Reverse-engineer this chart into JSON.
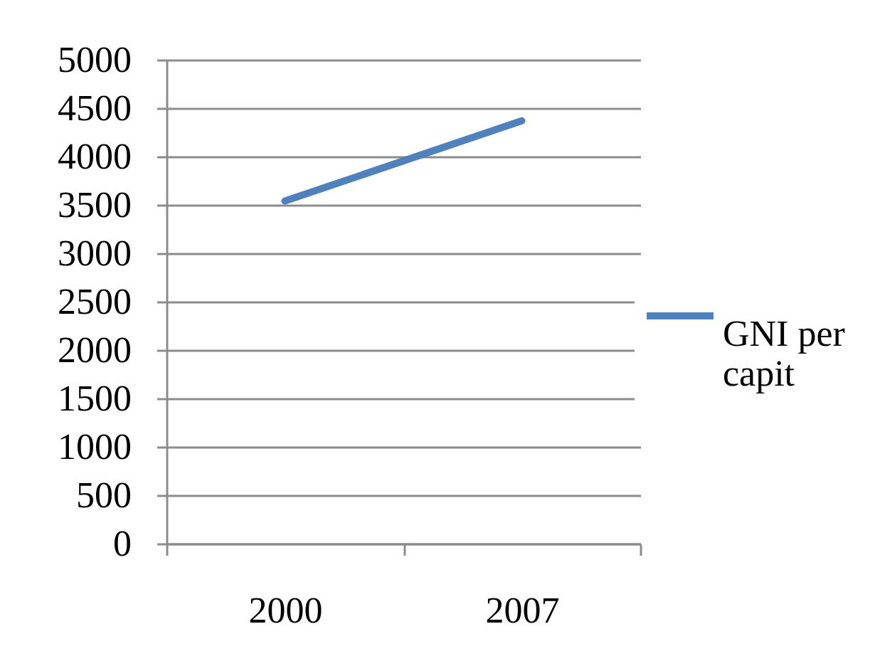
{
  "chart_data": {
    "type": "line",
    "categories": [
      "2000",
      "2007"
    ],
    "series": [
      {
        "name": "GNI per capit",
        "color": "#4f81bd",
        "values": [
          3540,
          4370
        ]
      }
    ],
    "ylim": [
      0,
      5000
    ],
    "yticks": [
      0,
      500,
      1000,
      1500,
      2000,
      2500,
      3000,
      3500,
      4000,
      4500,
      5000
    ],
    "grid": "y",
    "legend": "right"
  }
}
